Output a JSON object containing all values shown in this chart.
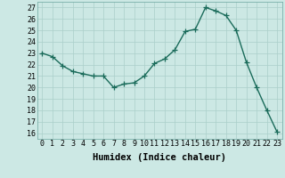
{
  "x": [
    0,
    1,
    2,
    3,
    4,
    5,
    6,
    7,
    8,
    9,
    10,
    11,
    12,
    13,
    14,
    15,
    16,
    17,
    18,
    19,
    20,
    21,
    22,
    23
  ],
  "y": [
    23,
    22.7,
    21.9,
    21.4,
    21.2,
    21.0,
    21.0,
    20.0,
    20.3,
    20.4,
    21.0,
    22.1,
    22.5,
    23.3,
    24.9,
    25.1,
    27.0,
    26.7,
    26.3,
    25.0,
    22.2,
    20.0,
    18.0,
    16.1
  ],
  "line_color": "#1a6b5a",
  "marker": "+",
  "markersize": 4,
  "linewidth": 1.0,
  "background_color": "#cce8e4",
  "grid_color": "#aacfca",
  "xlabel": "Humidex (Indice chaleur)",
  "xlim": [
    -0.5,
    23.5
  ],
  "ylim": [
    15.5,
    27.5
  ],
  "yticks": [
    16,
    17,
    18,
    19,
    20,
    21,
    22,
    23,
    24,
    25,
    26,
    27
  ],
  "xticks": [
    0,
    1,
    2,
    3,
    4,
    5,
    6,
    7,
    8,
    9,
    10,
    11,
    12,
    13,
    14,
    15,
    16,
    17,
    18,
    19,
    20,
    21,
    22,
    23
  ],
  "xlabel_fontsize": 7.5,
  "tick_fontsize": 6.0
}
